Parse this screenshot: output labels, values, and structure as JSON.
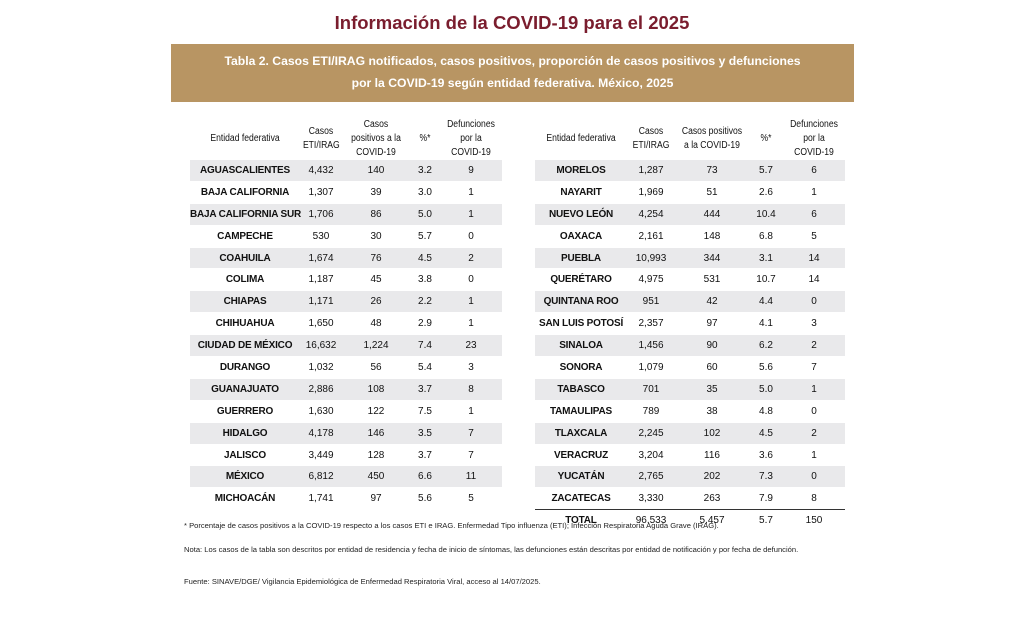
{
  "page_title": "Información de la COVID-19 para el 2025",
  "banner": {
    "line1": "Tabla 2. Casos ETI/IRAG notificados, casos positivos, proporción de casos positivos  y defunciones",
    "line2": "por la COVID-19 según entidad federativa. México, 2025"
  },
  "headers": {
    "entidad": "Entidad federativa",
    "casos": "Casos ETI/IRAG",
    "positivos": "Casos positivos a la COVID-19",
    "pct": "%*",
    "defunciones": "Defunciones por la COVID-19"
  },
  "left_rows": [
    [
      "AGUASCALIENTES",
      "4,432",
      "140",
      "3.2",
      "9"
    ],
    [
      "BAJA CALIFORNIA",
      "1,307",
      "39",
      "3.0",
      "1"
    ],
    [
      "BAJA CALIFORNIA SUR",
      "1,706",
      "86",
      "5.0",
      "1"
    ],
    [
      "CAMPECHE",
      "530",
      "30",
      "5.7",
      "0"
    ],
    [
      "COAHUILA",
      "1,674",
      "76",
      "4.5",
      "2"
    ],
    [
      "COLIMA",
      "1,187",
      "45",
      "3.8",
      "0"
    ],
    [
      "CHIAPAS",
      "1,171",
      "26",
      "2.2",
      "1"
    ],
    [
      "CHIHUAHUA",
      "1,650",
      "48",
      "2.9",
      "1"
    ],
    [
      "CIUDAD DE MÉXICO",
      "16,632",
      "1,224",
      "7.4",
      "23"
    ],
    [
      "DURANGO",
      "1,032",
      "56",
      "5.4",
      "3"
    ],
    [
      "GUANAJUATO",
      "2,886",
      "108",
      "3.7",
      "8"
    ],
    [
      "GUERRERO",
      "1,630",
      "122",
      "7.5",
      "1"
    ],
    [
      "HIDALGO",
      "4,178",
      "146",
      "3.5",
      "7"
    ],
    [
      "JALISCO",
      "3,449",
      "128",
      "3.7",
      "7"
    ],
    [
      "MÉXICO",
      "6,812",
      "450",
      "6.6",
      "11"
    ],
    [
      "MICHOACÁN",
      "1,741",
      "97",
      "5.6",
      "5"
    ]
  ],
  "right_rows": [
    [
      "MORELOS",
      "1,287",
      "73",
      "5.7",
      "6"
    ],
    [
      "NAYARIT",
      "1,969",
      "51",
      "2.6",
      "1"
    ],
    [
      "NUEVO LEÓN",
      "4,254",
      "444",
      "10.4",
      "6"
    ],
    [
      "OAXACA",
      "2,161",
      "148",
      "6.8",
      "5"
    ],
    [
      "PUEBLA",
      "10,993",
      "344",
      "3.1",
      "14"
    ],
    [
      "QUERÉTARO",
      "4,975",
      "531",
      "10.7",
      "14"
    ],
    [
      "QUINTANA ROO",
      "951",
      "42",
      "4.4",
      "0"
    ],
    [
      "SAN LUIS POTOSÍ",
      "2,357",
      "97",
      "4.1",
      "3"
    ],
    [
      "SINALOA",
      "1,456",
      "90",
      "6.2",
      "2"
    ],
    [
      "SONORA",
      "1,079",
      "60",
      "5.6",
      "7"
    ],
    [
      "TABASCO",
      "701",
      "35",
      "5.0",
      "1"
    ],
    [
      "TAMAULIPAS",
      "789",
      "38",
      "4.8",
      "0"
    ],
    [
      "TLAXCALA",
      "2,245",
      "102",
      "4.5",
      "2"
    ],
    [
      "VERACRUZ",
      "3,204",
      "116",
      "3.6",
      "1"
    ],
    [
      "YUCATÁN",
      "2,765",
      "202",
      "7.3",
      "0"
    ],
    [
      "ZACATECAS",
      "3,330",
      "263",
      "7.9",
      "8"
    ]
  ],
  "total_row": [
    "TOTAL",
    "96,533",
    "5,457",
    "5.7",
    "150"
  ],
  "footnotes": {
    "note1": "* Porcentaje de casos positivos a la COVID-19 respecto a los casos ETI e IRAG. Enfermedad Tipo influenza (ETI); Infección Respiratoria Aguda Grave (IRAG).",
    "note2": "Nota:  Los casos de la tabla son descritos por entidad de residencia y fecha de inicio de síntomas, las defunciones están descritas por entidad de notificación y por fecha de defunción.",
    "source": "Fuente: SINAVE/DGE/ Vigilancia Epidemiológica de Enfermedad Respiratoria Viral, acceso al 14/07/2025."
  },
  "colors": {
    "title": "#7a1d2e",
    "banner_bg": "#b89563",
    "row_shade": "#e9e9eb"
  }
}
